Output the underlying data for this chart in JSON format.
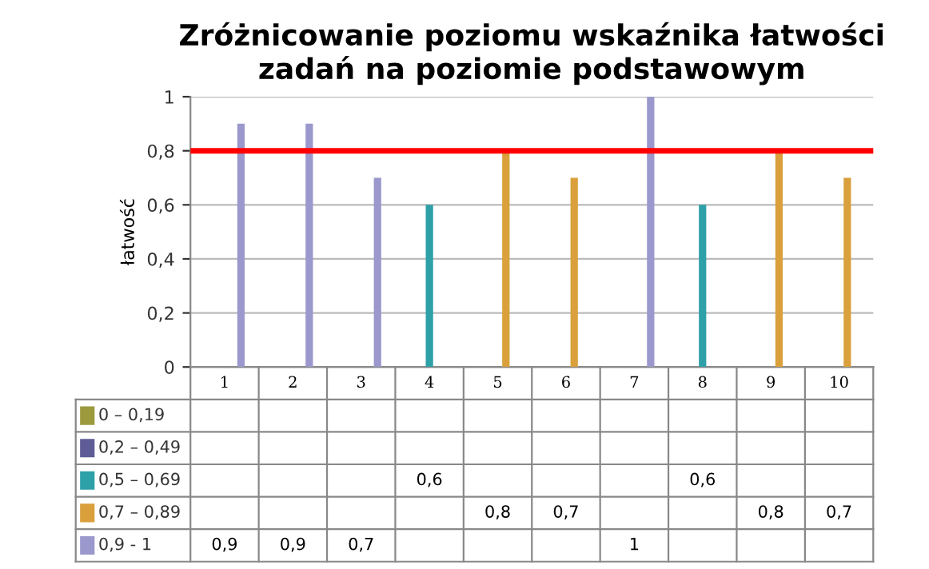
{
  "chart_data": {
    "type": "bar",
    "title": "Zróżnicowanie poziomu wskaźnika łatwości\nzadań na poziomie podstawowym",
    "ylabel": "łatwość",
    "categories": [
      "1",
      "2",
      "3",
      "4",
      "5",
      "6",
      "7",
      "8",
      "9",
      "10"
    ],
    "series": [
      {
        "name": "0 – 0,19",
        "color": "#9c9a3c",
        "values": [
          null,
          null,
          null,
          null,
          null,
          null,
          null,
          null,
          null,
          null
        ],
        "value_labels": [
          null,
          null,
          null,
          null,
          null,
          null,
          null,
          null,
          null,
          null
        ]
      },
      {
        "name": "0,2 – 0,49",
        "color": "#5e5c96",
        "values": [
          null,
          null,
          null,
          null,
          null,
          null,
          null,
          null,
          null,
          null
        ],
        "value_labels": [
          null,
          null,
          null,
          null,
          null,
          null,
          null,
          null,
          null,
          null
        ]
      },
      {
        "name": "0,5 – 0,69",
        "color": "#2ea0a8",
        "values": [
          null,
          null,
          null,
          0.6,
          null,
          null,
          null,
          0.6,
          null,
          null
        ],
        "value_labels": [
          null,
          null,
          null,
          "0,6",
          null,
          null,
          null,
          "0,6",
          null,
          null
        ]
      },
      {
        "name": "0,7 – 0,89",
        "color": "#d9a03c",
        "values": [
          null,
          null,
          null,
          null,
          0.8,
          0.7,
          null,
          null,
          0.8,
          0.7
        ],
        "value_labels": [
          null,
          null,
          null,
          null,
          "0,8",
          "0,7",
          null,
          null,
          "0,8",
          "0,7"
        ]
      },
      {
        "name": "0,9 - 1",
        "color": "#9a98cc",
        "values": [
          0.9,
          0.9,
          0.7,
          null,
          null,
          null,
          1,
          null,
          null,
          null
        ],
        "value_labels": [
          "0,9",
          "0,9",
          "0,7",
          null,
          null,
          null,
          "1",
          null,
          null,
          null
        ]
      }
    ],
    "ylim": [
      0,
      1
    ],
    "yticks": [
      0,
      {
        "value": 0.2,
        "label": "0,2"
      },
      {
        "value": 0.4,
        "label": "0,4"
      },
      {
        "value": 0.6,
        "label": "0,6"
      },
      {
        "value": 0.8,
        "label": "0,8"
      },
      1
    ],
    "grid": "y",
    "legend": "bottom",
    "ref_lines": [
      {
        "axis": "y",
        "value": 0.8,
        "color": "#ff0000"
      }
    ]
  }
}
